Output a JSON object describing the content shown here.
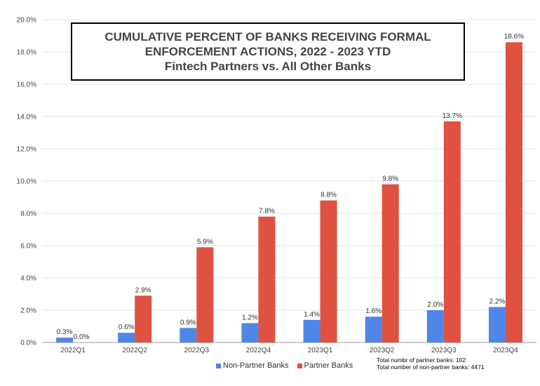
{
  "chart_data": {
    "type": "bar",
    "title_lines": [
      "CUMULATIVE PERCENT OF BANKS RECEIVING FORMAL",
      "ENFORCEMENT ACTIONS, 2022 - 2023 YTD",
      "Fintech Partners vs. All Other Banks"
    ],
    "categories": [
      "2022Q1",
      "2022Q2",
      "2022Q3",
      "2022Q4",
      "2023Q1",
      "2023Q2",
      "2023Q3",
      "2023Q4"
    ],
    "series": [
      {
        "name": "Non-Partner Banks",
        "color": "#4f86e8",
        "values": [
          0.3,
          0.6,
          0.9,
          1.2,
          1.4,
          1.6,
          2.0,
          2.2
        ],
        "labels": [
          "0.3%",
          "0.6%",
          "0.9%",
          "1.2%",
          "1.4%",
          "1.6%",
          "2.0%",
          "2.2%"
        ]
      },
      {
        "name": "Partner Banks",
        "color": "#df5140",
        "values": [
          0.0,
          2.9,
          5.9,
          7.8,
          8.8,
          9.8,
          13.7,
          18.6
        ],
        "labels": [
          "0.0%",
          "2.9%",
          "5.9%",
          "7.8%",
          "8.8%",
          "9.8%",
          "13.7%",
          "18.6%"
        ]
      }
    ],
    "ylim": [
      0,
      20
    ],
    "yticks": [
      0,
      2,
      4,
      6,
      8,
      10,
      12,
      14,
      16,
      18,
      20
    ],
    "ytick_labels": [
      "0.0%",
      "2.0%",
      "4.0%",
      "6.0%",
      "8.0%",
      "10.0%",
      "12.0%",
      "14.0%",
      "16.0%",
      "18.0%",
      "20.0%"
    ],
    "grid": true,
    "legend_position": "bottom",
    "notes": [
      "Total numbr of partner banks: 102",
      "Total number of non-partner banks: 4471"
    ]
  }
}
